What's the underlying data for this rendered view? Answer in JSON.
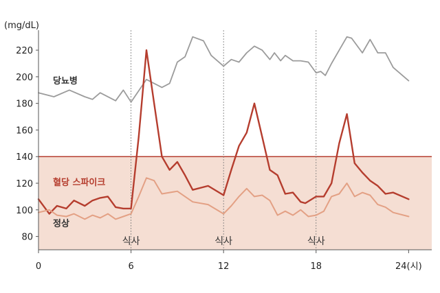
{
  "chart_data": {
    "type": "line",
    "ylabel_unit": "(mg/dL)",
    "x_ticks": [
      {
        "x": 0,
        "label": "0"
      },
      {
        "x": 6,
        "label": "6"
      },
      {
        "x": 12,
        "label": "12"
      },
      {
        "x": 18,
        "label": "18"
      },
      {
        "x": 24,
        "label": "24(시)"
      }
    ],
    "y_ticks": [
      80,
      100,
      120,
      140,
      160,
      180,
      200,
      220
    ],
    "xlim": [
      0,
      25.5
    ],
    "ylim": [
      70,
      235
    ],
    "threshold": 140,
    "meal_label": "식사",
    "meal_times": [
      6,
      12,
      18
    ],
    "colors": {
      "diabetes": "#9b9b9b",
      "spike": "#b53d2e",
      "normal": "#e3a084",
      "band": "#f5ded3",
      "threshold": "#b53d2e",
      "axis": "#555555",
      "meal_line": "#777777"
    },
    "series": [
      {
        "name": "당뇨병",
        "key": "diabetes",
        "points": [
          [
            0,
            188
          ],
          [
            1,
            185
          ],
          [
            2,
            190
          ],
          [
            3,
            185
          ],
          [
            3.5,
            183
          ],
          [
            4,
            188
          ],
          [
            5,
            182
          ],
          [
            5.5,
            190
          ],
          [
            6,
            181
          ],
          [
            7,
            198
          ],
          [
            8,
            192
          ],
          [
            8.5,
            195
          ],
          [
            9,
            211
          ],
          [
            9.5,
            215
          ],
          [
            10,
            230
          ],
          [
            10.7,
            227
          ],
          [
            11.2,
            216
          ],
          [
            12,
            208
          ],
          [
            12.5,
            213
          ],
          [
            13,
            211
          ],
          [
            13.5,
            218
          ],
          [
            14,
            223
          ],
          [
            14.5,
            220
          ],
          [
            15,
            213
          ],
          [
            15.3,
            218
          ],
          [
            15.7,
            212
          ],
          [
            16,
            216
          ],
          [
            16.5,
            212
          ],
          [
            17,
            212
          ],
          [
            17.5,
            211
          ],
          [
            18,
            203
          ],
          [
            18.3,
            204
          ],
          [
            18.6,
            201
          ],
          [
            19,
            210
          ],
          [
            19.5,
            220
          ],
          [
            20,
            230
          ],
          [
            20.3,
            229
          ],
          [
            21,
            218
          ],
          [
            21.5,
            228
          ],
          [
            22,
            218
          ],
          [
            22.5,
            218
          ],
          [
            23,
            207
          ],
          [
            24,
            197
          ]
        ]
      },
      {
        "name": "혈당 스파이크",
        "key": "spike",
        "points": [
          [
            0,
            108
          ],
          [
            0.7,
            97
          ],
          [
            1.2,
            103
          ],
          [
            1.8,
            101
          ],
          [
            2.3,
            107
          ],
          [
            3,
            103
          ],
          [
            3.5,
            107
          ],
          [
            4,
            109
          ],
          [
            4.5,
            110
          ],
          [
            5,
            102
          ],
          [
            5.5,
            101
          ],
          [
            6,
            101
          ],
          [
            6.5,
            155
          ],
          [
            7,
            220
          ],
          [
            7.5,
            180
          ],
          [
            8,
            140
          ],
          [
            8.5,
            130
          ],
          [
            9,
            136
          ],
          [
            9.5,
            126
          ],
          [
            10,
            115
          ],
          [
            11,
            118
          ],
          [
            12,
            111
          ],
          [
            12.5,
            130
          ],
          [
            13,
            148
          ],
          [
            13.5,
            158
          ],
          [
            14,
            180
          ],
          [
            14.5,
            155
          ],
          [
            15,
            130
          ],
          [
            15.5,
            126
          ],
          [
            16,
            112
          ],
          [
            16.5,
            113
          ],
          [
            17,
            106
          ],
          [
            17.3,
            105
          ],
          [
            18,
            110
          ],
          [
            18.5,
            110
          ],
          [
            19,
            120
          ],
          [
            19.5,
            150
          ],
          [
            20,
            172
          ],
          [
            20.5,
            135
          ],
          [
            21,
            128
          ],
          [
            21.5,
            122
          ],
          [
            22,
            118
          ],
          [
            22.5,
            112
          ],
          [
            23,
            113
          ],
          [
            24,
            108
          ]
        ]
      },
      {
        "name": "정상",
        "key": "normal",
        "points": [
          [
            0,
            98
          ],
          [
            0.7,
            100
          ],
          [
            1.2,
            96
          ],
          [
            1.8,
            95
          ],
          [
            2.3,
            97
          ],
          [
            3,
            93
          ],
          [
            3.5,
            96
          ],
          [
            4,
            94
          ],
          [
            4.5,
            97
          ],
          [
            5,
            93
          ],
          [
            5.5,
            95
          ],
          [
            6,
            97
          ],
          [
            6.5,
            110
          ],
          [
            7,
            124
          ],
          [
            7.5,
            122
          ],
          [
            8,
            112
          ],
          [
            9,
            114
          ],
          [
            10,
            106
          ],
          [
            11,
            104
          ],
          [
            12,
            97
          ],
          [
            12.5,
            103
          ],
          [
            13,
            110
          ],
          [
            13.5,
            116
          ],
          [
            14,
            110
          ],
          [
            14.5,
            111
          ],
          [
            15,
            107
          ],
          [
            15.5,
            96
          ],
          [
            16,
            99
          ],
          [
            16.5,
            96
          ],
          [
            17,
            100
          ],
          [
            17.5,
            95
          ],
          [
            18,
            96
          ],
          [
            18.5,
            99
          ],
          [
            19,
            110
          ],
          [
            19.5,
            112
          ],
          [
            20,
            120
          ],
          [
            20.5,
            110
          ],
          [
            21,
            113
          ],
          [
            21.5,
            111
          ],
          [
            22,
            104
          ],
          [
            22.5,
            102
          ],
          [
            23,
            98
          ],
          [
            24,
            95
          ]
        ]
      }
    ]
  }
}
